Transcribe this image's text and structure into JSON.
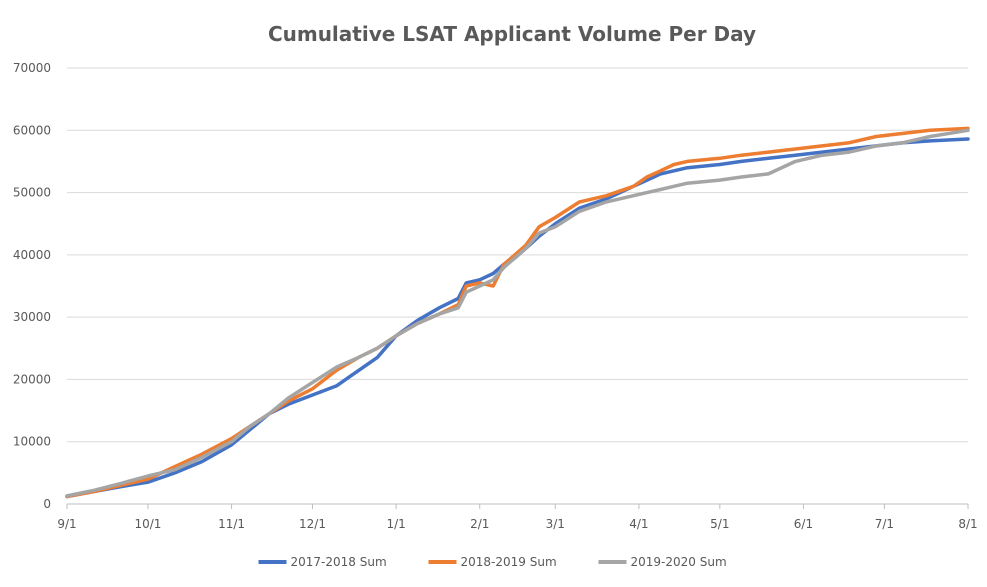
{
  "chart_data": {
    "type": "line",
    "title": "Cumulative LSAT Applicant Volume Per Day",
    "xlabel": "",
    "ylabel": "",
    "ylim": [
      0,
      70000
    ],
    "yticks": [
      0,
      10000,
      20000,
      30000,
      40000,
      50000,
      60000,
      70000
    ],
    "ytick_labels": [
      "0",
      "10000",
      "20000",
      "30000",
      "40000",
      "50000",
      "60000",
      "70000"
    ],
    "xticks": [
      0,
      30,
      61,
      91,
      122,
      153,
      181,
      212,
      242,
      273,
      303,
      334
    ],
    "xtick_labels": [
      "9/1",
      "10/1",
      "11/1",
      "12/1",
      "1/1",
      "2/1",
      "3/1",
      "4/1",
      "5/1",
      "6/1",
      "7/1",
      "8/1"
    ],
    "xlim": [
      0,
      334
    ],
    "grid": "horizontal",
    "legend": "bottom",
    "series": [
      {
        "name": "2017-2018 Sum",
        "color": "#4472C4",
        "x": [
          0,
          10,
          20,
          30,
          40,
          50,
          61,
          68,
          75,
          82,
          91,
          100,
          105,
          115,
          122,
          130,
          138,
          145,
          148,
          153,
          158,
          162,
          166,
          170,
          175,
          181,
          190,
          200,
          210,
          215,
          220,
          225,
          230,
          242,
          250,
          260,
          270,
          280,
          290,
          300,
          310,
          320,
          334
        ],
        "y": [
          1200,
          2000,
          2800,
          3500,
          5000,
          6800,
          9500,
          12000,
          14500,
          16000,
          17500,
          19000,
          20500,
          23500,
          27000,
          29500,
          31500,
          33000,
          35500,
          36000,
          37000,
          38500,
          39500,
          41000,
          43000,
          45000,
          47500,
          49000,
          51000,
          52000,
          53000,
          53500,
          54000,
          54500,
          55000,
          55500,
          56000,
          56500,
          57000,
          57500,
          58000,
          58300,
          58600
        ]
      },
      {
        "name": "2018-2019 Sum",
        "color": "#ED7D31",
        "x": [
          0,
          10,
          20,
          30,
          40,
          50,
          61,
          68,
          75,
          82,
          91,
          100,
          108,
          115,
          122,
          130,
          138,
          145,
          148,
          153,
          158,
          162,
          166,
          170,
          175,
          181,
          190,
          200,
          210,
          215,
          220,
          225,
          230,
          242,
          250,
          260,
          270,
          280,
          290,
          300,
          310,
          320,
          334
        ],
        "y": [
          1200,
          2000,
          3000,
          4000,
          6000,
          8000,
          10500,
          12500,
          14500,
          16500,
          18500,
          21500,
          23500,
          25000,
          27000,
          29000,
          30500,
          32000,
          35000,
          35500,
          35000,
          38500,
          40000,
          41500,
          44500,
          46000,
          48500,
          49500,
          51000,
          52500,
          53500,
          54500,
          55000,
          55500,
          56000,
          56500,
          57000,
          57500,
          58000,
          59000,
          59500,
          60000,
          60300
        ]
      },
      {
        "name": "2019-2020 Sum",
        "color": "#A5A5A5",
        "x": [
          0,
          10,
          20,
          30,
          40,
          50,
          61,
          68,
          75,
          82,
          91,
          100,
          108,
          115,
          122,
          130,
          138,
          145,
          148,
          153,
          158,
          162,
          166,
          170,
          175,
          181,
          190,
          200,
          210,
          215,
          220,
          225,
          230,
          242,
          250,
          260,
          270,
          280,
          290,
          300,
          310,
          320,
          334
        ],
        "y": [
          1300,
          2200,
          3300,
          4500,
          5500,
          7500,
          10000,
          12500,
          14500,
          17000,
          19500,
          22000,
          23500,
          25000,
          27000,
          29000,
          30500,
          31500,
          34000,
          35000,
          36000,
          38000,
          39500,
          41000,
          43500,
          44500,
          47000,
          48500,
          49500,
          50000,
          50500,
          51000,
          51500,
          52000,
          52500,
          53000,
          55000,
          56000,
          56500,
          57500,
          58000,
          59000,
          60000
        ]
      }
    ]
  }
}
